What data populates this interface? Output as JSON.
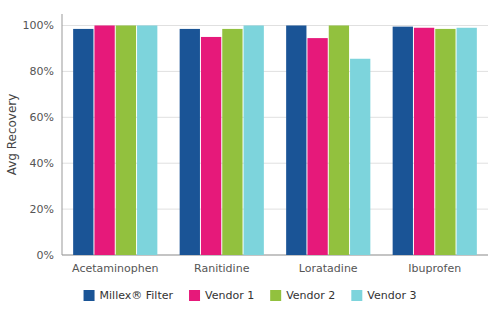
{
  "chart_data": {
    "type": "bar",
    "categories": [
      "Acetaminophen",
      "Ranitidine",
      "Loratadine",
      "Ibuprofen"
    ],
    "series": [
      {
        "name": "Millex® Filter",
        "color": "#1a5496",
        "values": [
          98.5,
          98.5,
          100.0,
          99.5
        ]
      },
      {
        "name": "Vendor 1",
        "color": "#e6197a",
        "values": [
          100.0,
          95.0,
          94.5,
          99.0
        ]
      },
      {
        "name": "Vendor 2",
        "color": "#92c13e",
        "values": [
          100.0,
          98.5,
          100.0,
          98.5
        ]
      },
      {
        "name": "Vendor 3",
        "color": "#7dd4dc",
        "values": [
          100.0,
          100.0,
          85.5,
          99.0
        ]
      }
    ],
    "ylabel": "Avg Recovery",
    "ylim": [
      0,
      105
    ],
    "yticks": [
      {
        "value": 0,
        "label": "0%"
      },
      {
        "value": 20,
        "label": "20%"
      },
      {
        "value": 40,
        "label": "40%"
      },
      {
        "value": 60,
        "label": "60%"
      },
      {
        "value": 80,
        "label": "80%"
      },
      {
        "value": 100,
        "label": "100%"
      }
    ],
    "grid": true,
    "legend": "bottom"
  }
}
